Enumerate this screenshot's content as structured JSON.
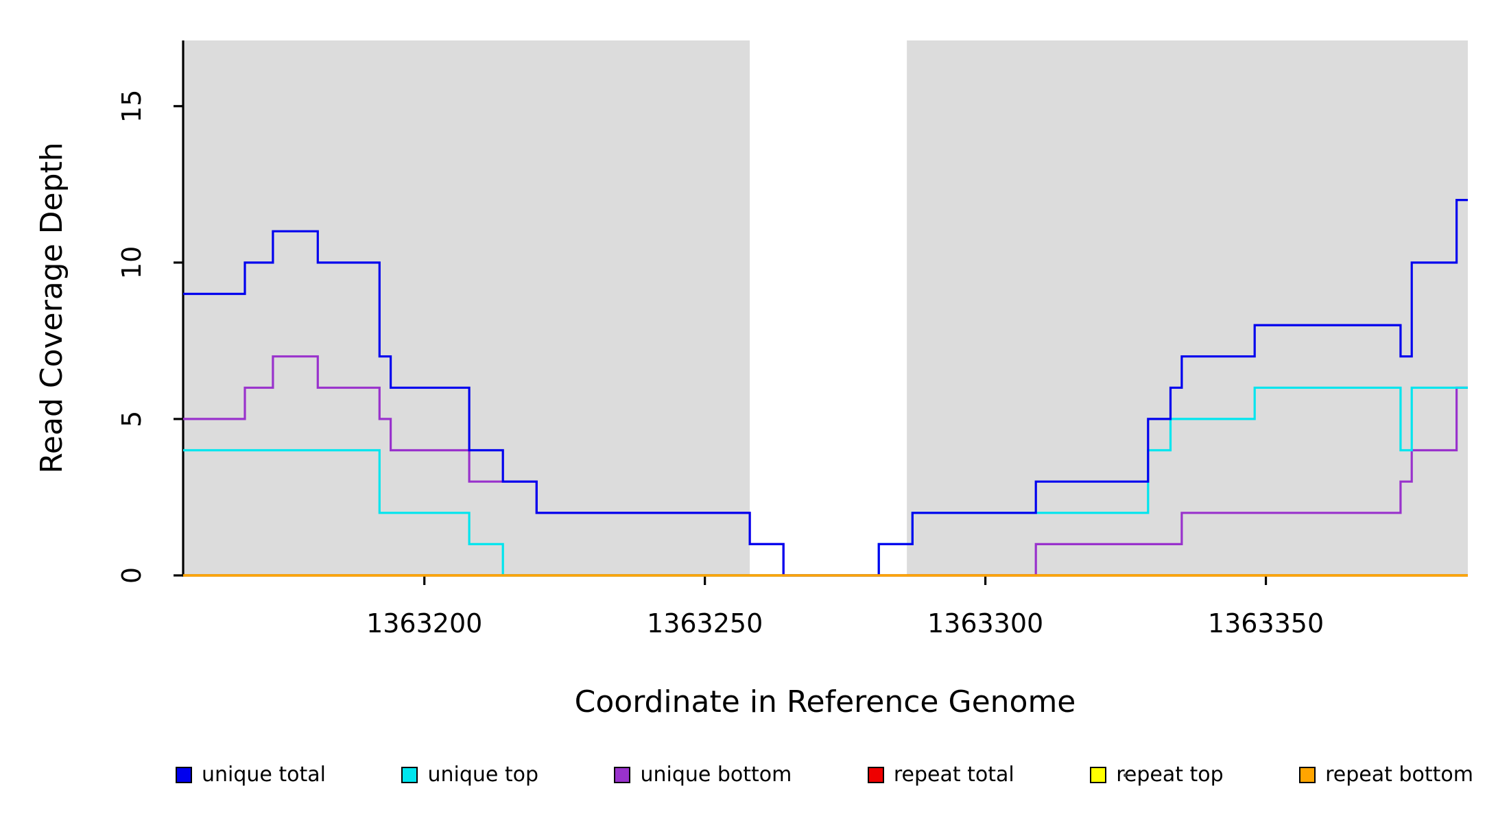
{
  "figure": {
    "background": "#FFFFFF"
  },
  "chart_data": {
    "type": "line",
    "style": "step",
    "title": "",
    "xlabel": "Coordinate in Reference Genome",
    "ylabel": "Read Coverage Depth",
    "xlim": [
      1363157,
      1363386
    ],
    "ylim": [
      0,
      17.1
    ],
    "xticks": [
      1363200,
      1363250,
      1363300,
      1363350
    ],
    "yticks": [
      0,
      5,
      10,
      15
    ],
    "x_end": 1363386,
    "grid": false,
    "shaded_regions": [
      [
        1363157,
        1363258
      ],
      [
        1363286,
        1363386
      ]
    ],
    "shaded_color": "#DCDCDC",
    "axis_color": "#000000",
    "series": [
      {
        "name": "unique bottom",
        "color": "#9932CC",
        "points": [
          [
            1363157,
            5
          ],
          [
            1363168,
            6
          ],
          [
            1363173,
            7
          ],
          [
            1363181,
            6
          ],
          [
            1363192,
            5
          ],
          [
            1363194,
            4
          ],
          [
            1363208,
            3
          ],
          [
            1363220,
            2
          ],
          [
            1363258,
            1
          ],
          [
            1363264,
            0
          ],
          [
            1363309,
            1
          ],
          [
            1363335,
            2
          ],
          [
            1363374,
            3
          ],
          [
            1363376,
            4
          ],
          [
            1363384,
            6
          ]
        ]
      },
      {
        "name": "unique top",
        "color": "#00E5EE",
        "points": [
          [
            1363157,
            4
          ],
          [
            1363192,
            2
          ],
          [
            1363208,
            1
          ],
          [
            1363214,
            0
          ],
          [
            1363281,
            1
          ],
          [
            1363287,
            2
          ],
          [
            1363329,
            4
          ],
          [
            1363333,
            5
          ],
          [
            1363348,
            6
          ],
          [
            1363374,
            4
          ],
          [
            1363376,
            6
          ]
        ]
      },
      {
        "name": "unique total",
        "color": "#0000EE",
        "points": [
          [
            1363157,
            9
          ],
          [
            1363168,
            10
          ],
          [
            1363173,
            11
          ],
          [
            1363181,
            10
          ],
          [
            1363192,
            7
          ],
          [
            1363194,
            6
          ],
          [
            1363208,
            4
          ],
          [
            1363214,
            3
          ],
          [
            1363220,
            2
          ],
          [
            1363258,
            1
          ],
          [
            1363264,
            0
          ],
          [
            1363281,
            1
          ],
          [
            1363287,
            2
          ],
          [
            1363309,
            3
          ],
          [
            1363329,
            5
          ],
          [
            1363333,
            6
          ],
          [
            1363335,
            7
          ],
          [
            1363348,
            8
          ],
          [
            1363374,
            7
          ],
          [
            1363376,
            10
          ],
          [
            1363384,
            12
          ]
        ]
      },
      {
        "name": "repeat total",
        "color": "#EE0000",
        "points": [
          [
            1363157,
            0
          ]
        ]
      },
      {
        "name": "repeat top",
        "color": "#FFFF00",
        "points": [
          [
            1363157,
            0
          ]
        ]
      },
      {
        "name": "repeat bottom",
        "color": "#FFA500",
        "points": [
          [
            1363157,
            0
          ]
        ]
      }
    ],
    "legend": [
      {
        "label": "unique total",
        "color": "#0000EE"
      },
      {
        "label": "unique top",
        "color": "#00E5EE"
      },
      {
        "label": "unique bottom",
        "color": "#9932CC"
      },
      {
        "label": "repeat total",
        "color": "#EE0000"
      },
      {
        "label": "repeat top",
        "color": "#FFFF00"
      },
      {
        "label": "repeat bottom",
        "color": "#FFA500"
      }
    ],
    "legend_position": "bottom"
  }
}
